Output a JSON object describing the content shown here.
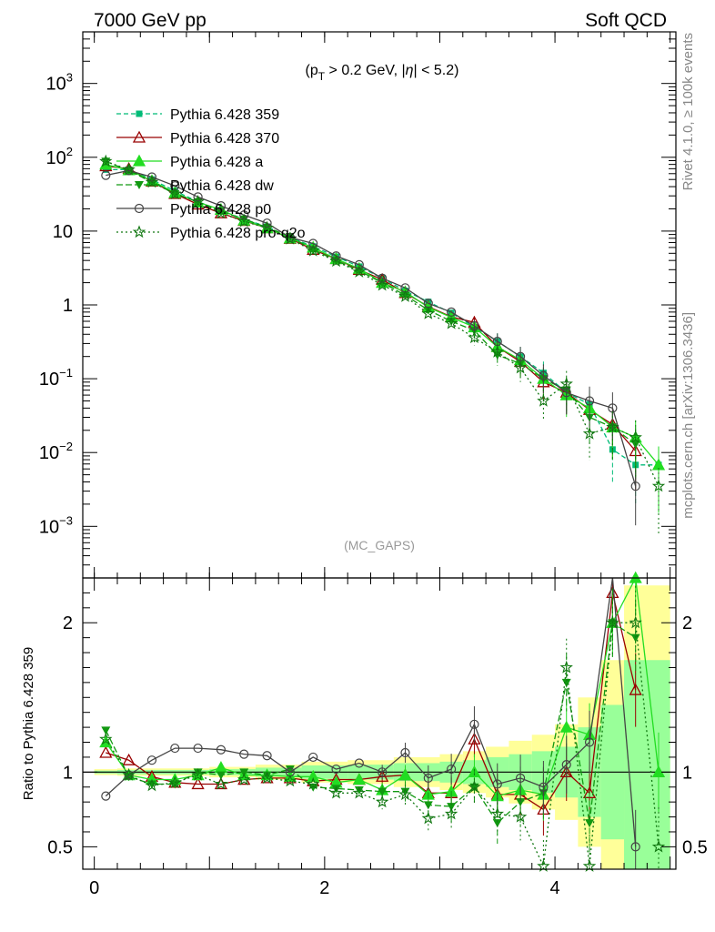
{
  "header": {
    "left_title": "7000 GeV pp",
    "right_title": "Soft QCD",
    "cut_label_parts": [
      "(p",
      "T",
      " > 0.2 GeV, |",
      "η",
      "| < 5.2)"
    ],
    "analysis": "(MC_GAPS)",
    "side_rivet": "Rivet 4.1.0, ≥ 100k events",
    "side_mcplots": "mcplots.cern.ch [arXiv:1306.3436]",
    "ratio_ylabel": "Ratio to Pythia 6.428 359"
  },
  "colors": {
    "band_yellow": "#ffff99",
    "band_green": "#99ff99",
    "s359": "#00bb77",
    "s370": "#990000",
    "sa": "#22dd22",
    "sdw": "#119911",
    "sp0": "#444444",
    "sq2o": "#117711"
  },
  "chart_data": [
    {
      "panel": "main",
      "type": "line",
      "yscale": "log",
      "xlim": [
        -0.1,
        5.05
      ],
      "ylim": [
        0.0002,
        5000
      ],
      "yticks": [
        0.001,
        0.01,
        0.1,
        1,
        10,
        100,
        1000
      ],
      "ytick_labels": [
        [
          "10",
          "−3"
        ],
        [
          "10",
          "−2"
        ],
        [
          "10",
          "−1"
        ],
        [
          "1",
          ""
        ],
        [
          "10",
          ""
        ],
        [
          "10",
          "2"
        ],
        [
          "10",
          "3"
        ]
      ],
      "x": [
        0.1,
        0.3,
        0.5,
        0.7,
        0.9,
        1.1,
        1.3,
        1.5,
        1.7,
        1.9,
        2.1,
        2.3,
        2.5,
        2.7,
        2.9,
        3.1,
        3.3,
        3.5,
        3.7,
        3.9,
        4.1,
        4.3,
        4.5,
        4.7,
        4.9
      ],
      "series": [
        {
          "key": "s359",
          "name": "Pythia 6.428 359",
          "marker": "square",
          "dash": "5,3",
          "values": [
            68,
            68,
            50,
            35,
            25,
            19,
            14.5,
            11.5,
            8.2,
            6.2,
            4.5,
            3.3,
            2.3,
            1.55,
            1.1,
            0.78,
            0.5,
            0.32,
            0.2,
            0.12,
            0.065,
            0.045,
            0.011,
            0.0068,
            0.0068
          ]
        },
        {
          "key": "s370",
          "name": "Pythia 6.428 370",
          "marker": "triangle-open",
          "dash": "",
          "values": [
            76,
            70,
            47,
            32,
            23,
            17.5,
            13.8,
            11,
            7.9,
            5.6,
            4.2,
            3.0,
            2.2,
            1.45,
            0.95,
            0.69,
            0.58,
            0.27,
            0.17,
            0.09,
            0.065,
            0.038,
            0.024,
            0.0105,
            null
          ]
        },
        {
          "key": "sa",
          "name": "Pythia 6.428 a",
          "marker": "triangle",
          "dash": "",
          "values": [
            80,
            67,
            48,
            33,
            24.5,
            19.5,
            14,
            11,
            8,
            6,
            4.2,
            3.1,
            2.0,
            1.5,
            0.93,
            0.68,
            0.5,
            0.27,
            0.18,
            0.1,
            0.06,
            0.04,
            0.022,
            0.016,
            0.0068
          ]
        },
        {
          "key": "sdw",
          "name": "Pythia 6.428 dw",
          "marker": "triangle-down",
          "dash": "7,3",
          "values": [
            88,
            66,
            46,
            32,
            25,
            18.5,
            14.5,
            11.2,
            8.4,
            5.6,
            4.0,
            2.9,
            2.0,
            1.35,
            0.85,
            0.6,
            0.45,
            0.21,
            0.16,
            0.1,
            0.07,
            0.03,
            0.022,
            0.013,
            null
          ]
        },
        {
          "key": "sp0",
          "name": "Pythia 6.428 p0",
          "marker": "circle-open",
          "dash": "",
          "values": [
            57,
            66,
            54,
            41,
            29,
            22,
            16.5,
            12.8,
            8.2,
            6.8,
            4.6,
            3.5,
            2.3,
            1.7,
            1.05,
            0.8,
            0.52,
            0.32,
            0.2,
            0.11,
            0.065,
            0.05,
            0.04,
            0.0035,
            null
          ]
        },
        {
          "key": "sq2o",
          "name": "Pythia 6.428 pro-q2o",
          "marker": "star",
          "dash": "2,3",
          "values": [
            88,
            68,
            46,
            32,
            25,
            17.5,
            13.5,
            11,
            7.8,
            5.4,
            3.9,
            2.8,
            1.85,
            1.3,
            0.76,
            0.56,
            0.36,
            0.23,
            0.14,
            0.05,
            0.085,
            0.018,
            0.022,
            0.016,
            0.0035
          ]
        }
      ]
    },
    {
      "panel": "ratio",
      "type": "line",
      "xlim": [
        -0.1,
        5.05
      ],
      "ylim": [
        0.35,
        2.3
      ],
      "yticks": [
        0.5,
        1,
        2
      ],
      "ytick_labels": [
        "0.5",
        "1",
        "2"
      ],
      "xticks": [
        0,
        2,
        4
      ],
      "xtick_labels": [
        "0",
        "2",
        "4"
      ],
      "x": [
        0.1,
        0.3,
        0.5,
        0.7,
        0.9,
        1.1,
        1.3,
        1.5,
        1.7,
        1.9,
        2.1,
        2.3,
        2.5,
        2.7,
        2.9,
        3.1,
        3.3,
        3.5,
        3.7,
        3.9,
        4.1,
        4.3,
        4.5,
        4.7,
        4.9
      ],
      "band_bins": [
        [
          0.0,
          0.2,
          0.01,
          0.02
        ],
        [
          0.2,
          1.0,
          0.015,
          0.025
        ],
        [
          1.0,
          1.4,
          0.02,
          0.035
        ],
        [
          1.4,
          1.8,
          0.03,
          0.05
        ],
        [
          1.8,
          2.2,
          0.045,
          0.07
        ],
        [
          2.2,
          2.6,
          0.05,
          0.08
        ],
        [
          2.6,
          3.0,
          0.06,
          0.1
        ],
        [
          3.0,
          3.2,
          0.07,
          0.12
        ],
        [
          3.2,
          3.4,
          0.08,
          0.14
        ],
        [
          3.4,
          3.6,
          0.1,
          0.17
        ],
        [
          3.6,
          3.8,
          0.12,
          0.21
        ],
        [
          3.8,
          4.0,
          0.14,
          0.25
        ],
        [
          4.0,
          4.2,
          0.17,
          0.32
        ],
        [
          4.2,
          4.4,
          0.3,
          0.5
        ],
        [
          4.4,
          4.6,
          0.45,
          0.75
        ],
        [
          4.6,
          5.0,
          0.75,
          1.25
        ]
      ],
      "series": [
        {
          "key": "s359",
          "values": [
            1,
            1,
            1,
            1,
            1,
            1,
            1,
            1,
            1,
            1,
            1,
            1,
            1,
            1,
            1,
            1,
            1,
            1,
            1,
            1,
            1,
            1,
            1,
            1,
            1
          ]
        },
        {
          "key": "s370",
          "values": [
            1.13,
            1.08,
            0.97,
            0.93,
            0.92,
            0.92,
            0.95,
            0.96,
            0.96,
            0.94,
            0.95,
            0.95,
            0.97,
            0.98,
            0.86,
            0.86,
            1.22,
            0.85,
            0.85,
            0.75,
            1.0,
            0.86,
            2.2,
            1.55,
            null
          ]
        },
        {
          "key": "sa",
          "values": [
            1.2,
            0.98,
            0.95,
            0.95,
            0.98,
            1.03,
            0.98,
            0.98,
            0.97,
            0.97,
            0.93,
            0.95,
            0.88,
            0.98,
            0.85,
            0.87,
            1.0,
            0.84,
            0.88,
            0.85,
            1.3,
            1.25,
            2.0,
            2.3,
            1.0
          ]
        },
        {
          "key": "sdw",
          "values": [
            1.28,
            0.97,
            0.92,
            0.92,
            1.0,
            0.98,
            1.0,
            0.98,
            1.02,
            0.9,
            0.89,
            0.88,
            0.87,
            0.87,
            0.78,
            0.77,
            0.9,
            0.66,
            0.8,
            0.86,
            1.6,
            0.66,
            2.0,
            1.9,
            null
          ]
        },
        {
          "key": "sp0",
          "values": [
            0.84,
            0.98,
            1.08,
            1.16,
            1.16,
            1.15,
            1.12,
            1.11,
            1.0,
            1.1,
            1.02,
            1.06,
            1.0,
            1.13,
            0.96,
            1.02,
            1.32,
            0.92,
            0.96,
            0.9,
            1.05,
            1.2,
            3.2,
            0.5,
            null
          ]
        },
        {
          "key": "sq2o",
          "values": [
            1.22,
            0.98,
            0.91,
            0.93,
            0.98,
            0.92,
            0.95,
            0.96,
            0.94,
            0.92,
            0.86,
            0.86,
            0.8,
            0.85,
            0.69,
            0.72,
            0.9,
            0.72,
            0.7,
            0.37,
            1.7,
            0.37,
            2.0,
            2.0,
            0.5
          ]
        }
      ]
    }
  ]
}
